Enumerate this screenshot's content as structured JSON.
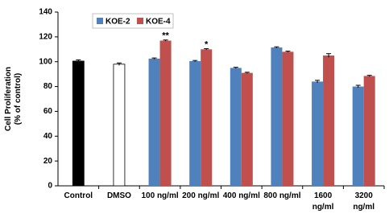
{
  "chart_data": {
    "type": "bar",
    "ylabel": "Cell Proliferation\n(% of control)",
    "categories": [
      "Control",
      "DMSO",
      "100 ng/ml",
      "200 ng/ml",
      "400 ng/ml",
      "800 ng/ml",
      "1600\nng/ml",
      "3200\nng/ml"
    ],
    "values": [
      100.5,
      98,
      null,
      null,
      null,
      null,
      null,
      null
    ],
    "errors": [
      1,
      1,
      null,
      null,
      null,
      null,
      null,
      null
    ],
    "colors": [
      "#000000",
      "#ffffff",
      null,
      null,
      null,
      null,
      null,
      null
    ],
    "series": [
      {
        "name": "KOE-2",
        "color": "#4f81bd",
        "values": [
          null,
          null,
          102.5,
          100.5,
          95,
          111.5,
          84,
          80
        ],
        "errors": [
          null,
          null,
          0.5,
          0.5,
          0.5,
          0.5,
          1,
          1
        ]
      },
      {
        "name": "KOE-4",
        "color": "#c0504d",
        "values": [
          null,
          null,
          117,
          110,
          91,
          108,
          105,
          88.5
        ],
        "errors": [
          null,
          null,
          0.5,
          0.5,
          0.5,
          0.5,
          1.5,
          0.5
        ],
        "significance": [
          null,
          null,
          "**",
          "*",
          null,
          null,
          null,
          null
        ]
      }
    ],
    "ylim": [
      0,
      140
    ],
    "yticks": [
      0,
      20,
      40,
      60,
      80,
      100,
      120,
      140
    ],
    "grid": false,
    "legend": "top-left"
  }
}
